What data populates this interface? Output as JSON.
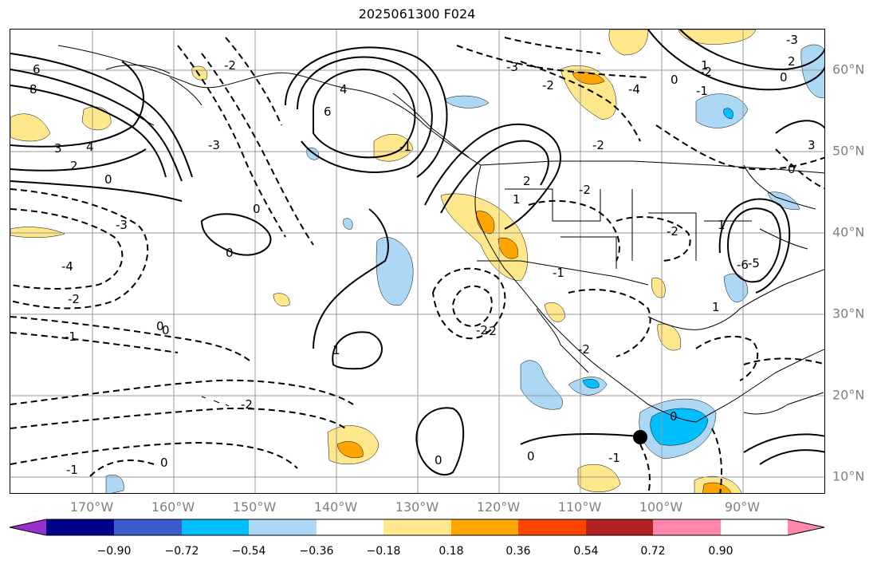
{
  "title": "2025061300 F024",
  "lon_labels": [
    "170°W",
    "160°W",
    "150°W",
    "140°W",
    "130°W",
    "120°W",
    "110°W",
    "100°W",
    "90°W"
  ],
  "lat_labels": [
    "60°N",
    "50°N",
    "40°N",
    "30°N",
    "20°N",
    "10°N"
  ],
  "colorbar": {
    "colors": [
      "#9932cc",
      "#00008b",
      "#3a5fcd",
      "#00bfff",
      "#add8f5",
      "#ffffff",
      "#ffe88c",
      "#ffa500",
      "#ff4500",
      "#b22222",
      "#ff88aa"
    ],
    "tick_labels": [
      "−0.90",
      "−0.72",
      "−0.54",
      "−0.36",
      "−0.18",
      "0.18",
      "0.36",
      "0.54",
      "0.72",
      "0.90"
    ]
  },
  "contour_labels": [
    "6",
    "8",
    "3",
    "4",
    "2",
    "0",
    "-3",
    "-4",
    "-2",
    "-1",
    "0",
    "-3",
    "-2",
    "6",
    "4",
    "-3",
    "-2",
    "0",
    "0",
    "1",
    "-1",
    "0",
    "-2",
    "-2",
    "-2",
    "2",
    "1",
    "-1",
    "-2",
    "-2",
    "-1",
    "0",
    "-1",
    "0",
    "0",
    "1",
    "-6",
    "-3",
    "0",
    "-1",
    "0",
    "-2",
    "2",
    "1",
    "-4",
    "0",
    "-2",
    "3",
    "1",
    "-5",
    "0",
    "-2"
  ],
  "marker": "storm-center"
}
